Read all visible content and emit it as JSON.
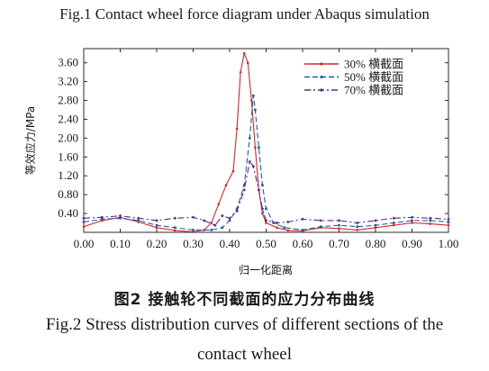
{
  "captions": {
    "fig1": "Fig.1   Contact wheel force diagram under Abaqus simulation",
    "fig2_cn": "图2   接触轮不同截面的应力分布曲线",
    "fig2_en_line1": "Fig.2   Stress distribution curves of different sections of the",
    "fig2_en_line2": "contact wheel"
  },
  "chart_data": {
    "type": "line",
    "title": "",
    "xlabel": "归一化距离",
    "ylabel": "等效应力/MPa",
    "xlim": [
      0.0,
      1.0
    ],
    "ylim": [
      0.0,
      3.9
    ],
    "xticks": [
      "0.00",
      "0.10",
      "0.20",
      "0.30",
      "0.40",
      "0.50",
      "0.60",
      "0.70",
      "0.80",
      "0.90",
      "1.00"
    ],
    "yticks": [
      "0.40",
      "0.80",
      "1.20",
      "1.60",
      "2.00",
      "2.40",
      "2.80",
      "3.20",
      "3.60"
    ],
    "legend_position": "top-right",
    "grid": false,
    "series": [
      {
        "name": "30% 横截面",
        "color": "#d62728",
        "dash": "solid",
        "marker": "circle",
        "points": [
          [
            0.0,
            0.12
          ],
          [
            0.05,
            0.25
          ],
          [
            0.1,
            0.32
          ],
          [
            0.15,
            0.22
          ],
          [
            0.2,
            0.1
          ],
          [
            0.25,
            0.04
          ],
          [
            0.3,
            0.01
          ],
          [
            0.33,
            0.05
          ],
          [
            0.35,
            0.2
          ],
          [
            0.37,
            0.6
          ],
          [
            0.39,
            1.0
          ],
          [
            0.41,
            1.3
          ],
          [
            0.42,
            2.2
          ],
          [
            0.43,
            3.4
          ],
          [
            0.44,
            3.8
          ],
          [
            0.45,
            3.6
          ],
          [
            0.46,
            2.8
          ],
          [
            0.47,
            1.8
          ],
          [
            0.48,
            0.9
          ],
          [
            0.49,
            0.4
          ],
          [
            0.5,
            0.2
          ],
          [
            0.53,
            0.1
          ],
          [
            0.56,
            0.04
          ],
          [
            0.6,
            0.03
          ],
          [
            0.65,
            0.1
          ],
          [
            0.7,
            0.08
          ],
          [
            0.75,
            0.05
          ],
          [
            0.8,
            0.1
          ],
          [
            0.85,
            0.15
          ],
          [
            0.9,
            0.2
          ],
          [
            0.95,
            0.18
          ],
          [
            1.0,
            0.15
          ]
        ]
      },
      {
        "name": "50% 横截面",
        "color": "#1f5fa8",
        "dash": "dashed",
        "marker": "square",
        "points": [
          [
            0.0,
            0.22
          ],
          [
            0.05,
            0.28
          ],
          [
            0.1,
            0.3
          ],
          [
            0.15,
            0.25
          ],
          [
            0.2,
            0.15
          ],
          [
            0.25,
            0.1
          ],
          [
            0.3,
            0.05
          ],
          [
            0.35,
            0.05
          ],
          [
            0.38,
            0.1
          ],
          [
            0.4,
            0.25
          ],
          [
            0.42,
            0.5
          ],
          [
            0.44,
            1.0
          ],
          [
            0.455,
            2.0
          ],
          [
            0.465,
            2.9
          ],
          [
            0.47,
            2.6
          ],
          [
            0.48,
            1.8
          ],
          [
            0.49,
            1.0
          ],
          [
            0.5,
            0.5
          ],
          [
            0.52,
            0.2
          ],
          [
            0.55,
            0.1
          ],
          [
            0.6,
            0.05
          ],
          [
            0.65,
            0.12
          ],
          [
            0.7,
            0.15
          ],
          [
            0.75,
            0.12
          ],
          [
            0.8,
            0.15
          ],
          [
            0.85,
            0.2
          ],
          [
            0.9,
            0.25
          ],
          [
            0.95,
            0.25
          ],
          [
            1.0,
            0.22
          ]
        ]
      },
      {
        "name": "70% 横截面",
        "color": "#5a2a8a",
        "dash": "dashdot",
        "marker": "diamond",
        "points": [
          [
            0.0,
            0.3
          ],
          [
            0.05,
            0.32
          ],
          [
            0.1,
            0.35
          ],
          [
            0.15,
            0.3
          ],
          [
            0.2,
            0.25
          ],
          [
            0.25,
            0.3
          ],
          [
            0.3,
            0.32
          ],
          [
            0.33,
            0.25
          ],
          [
            0.36,
            0.15
          ],
          [
            0.38,
            0.35
          ],
          [
            0.4,
            0.3
          ],
          [
            0.42,
            0.45
          ],
          [
            0.44,
            0.9
          ],
          [
            0.455,
            1.5
          ],
          [
            0.465,
            1.4
          ],
          [
            0.48,
            0.9
          ],
          [
            0.49,
            0.5
          ],
          [
            0.5,
            0.25
          ],
          [
            0.53,
            0.2
          ],
          [
            0.56,
            0.22
          ],
          [
            0.6,
            0.28
          ],
          [
            0.65,
            0.25
          ],
          [
            0.7,
            0.25
          ],
          [
            0.75,
            0.2
          ],
          [
            0.8,
            0.25
          ],
          [
            0.85,
            0.3
          ],
          [
            0.9,
            0.32
          ],
          [
            0.95,
            0.3
          ],
          [
            1.0,
            0.28
          ]
        ]
      }
    ]
  }
}
